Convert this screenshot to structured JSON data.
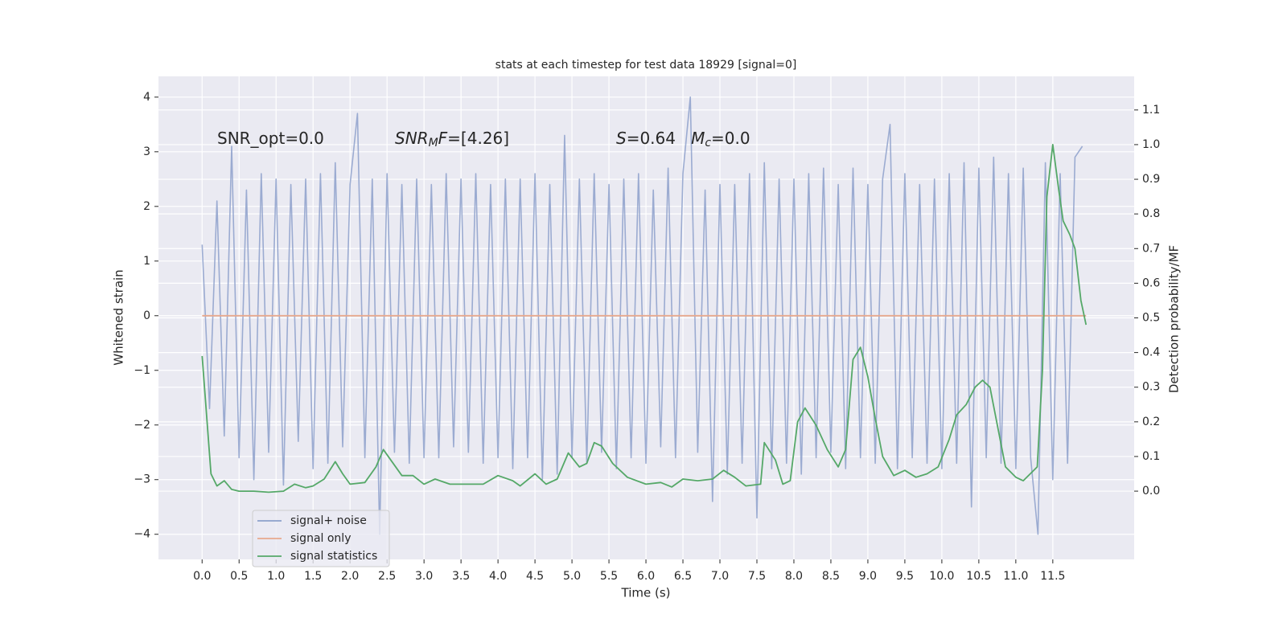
{
  "chart_data": {
    "type": "line",
    "title": "stats at each timestep for test data 18929 [signal=0]",
    "xlabel": "Time (s)",
    "ylabel": "Whitened strain",
    "y2label": "Detection probability/MF",
    "xlim": [
      -0.59,
      12.6
    ],
    "ylim": [
      -4.46,
      4.38
    ],
    "y2lim": [
      -0.197,
      1.197
    ],
    "xticks": [
      {
        "value": 0,
        "label": "0.0"
      },
      0.5,
      {
        "value": 1,
        "label": "1.0"
      },
      1.5,
      {
        "value": 2,
        "label": "2.0"
      },
      2.5,
      {
        "value": 3,
        "label": "3.0"
      },
      3.5,
      {
        "value": 4,
        "label": "4.0"
      },
      4.5,
      {
        "value": 5,
        "label": "5.0"
      },
      5.5,
      {
        "value": 6,
        "label": "6.0"
      },
      6.5,
      {
        "value": 7,
        "label": "7.0"
      },
      7.5,
      {
        "value": 8,
        "label": "8.0"
      },
      8.5,
      {
        "value": 9,
        "label": "9.0"
      },
      9.5,
      {
        "value": 10,
        "label": "10.0"
      },
      10.5,
      {
        "value": 11,
        "label": "11.0"
      },
      11.5
    ],
    "yticks": [
      {
        "value": -4,
        "label": "−4"
      },
      {
        "value": -3,
        "label": "−3"
      },
      {
        "value": -2,
        "label": "−2"
      },
      {
        "value": -1,
        "label": "−1"
      },
      0,
      1,
      2,
      3,
      4
    ],
    "y2ticks": [
      {
        "value": 0,
        "label": "0.0"
      },
      0.1,
      0.2,
      0.3,
      0.4,
      0.5,
      0.6,
      0.7,
      0.8,
      0.9,
      {
        "value": 1,
        "label": "1.0"
      },
      1.1
    ],
    "grid": true,
    "legend": "lower left",
    "annotations": [
      [
        {
          "text": "SNR_opt=0.0"
        }
      ],
      [
        {
          "text": "SNR",
          "italic": true
        },
        {
          "text": "M",
          "italic": true,
          "sub": true
        },
        {
          "text": "F",
          "italic": true
        },
        {
          "text": "=[4.26]"
        }
      ],
      [
        {
          "text": "S",
          "italic": true
        },
        {
          "text": "=0.64   "
        },
        {
          "text": "M",
          "italic": true
        },
        {
          "text": "c",
          "italic": true,
          "sub": true
        },
        {
          "text": "=0.0"
        }
      ]
    ],
    "series": [
      {
        "name": "signal+ noise",
        "color": "#8da0cb",
        "axis": "y",
        "x": [
          0,
          0.1,
          0.2,
          0.3,
          0.4,
          0.5,
          0.6,
          0.7,
          0.8,
          0.9,
          1,
          1.1,
          1.2,
          1.3,
          1.4,
          1.5,
          1.6,
          1.7,
          1.8,
          1.9,
          2,
          2.1,
          2.2,
          2.3,
          2.4,
          2.5,
          2.6,
          2.7,
          2.8,
          2.9,
          3,
          3.1,
          3.2,
          3.3,
          3.4,
          3.5,
          3.6,
          3.7,
          3.8,
          3.9,
          4,
          4.1,
          4.2,
          4.3,
          4.4,
          4.5,
          4.6,
          4.7,
          4.8,
          4.9,
          5,
          5.1,
          5.2,
          5.3,
          5.4,
          5.5,
          5.6,
          5.7,
          5.8,
          5.9,
          6,
          6.1,
          6.2,
          6.3,
          6.4,
          6.5,
          6.6,
          6.7,
          6.8,
          6.9,
          7,
          7.1,
          7.2,
          7.3,
          7.4,
          7.5,
          7.6,
          7.7,
          7.8,
          7.9,
          8,
          8.1,
          8.2,
          8.3,
          8.4,
          8.5,
          8.6,
          8.7,
          8.8,
          8.9,
          9,
          9.1,
          9.2,
          9.3,
          9.4,
          9.5,
          9.6,
          9.7,
          9.8,
          9.9,
          10,
          10.1,
          10.2,
          10.3,
          10.4,
          10.5,
          10.6,
          10.7,
          10.8,
          10.9,
          11,
          11.1,
          11.2,
          11.3,
          11.4,
          11.5,
          11.6,
          11.7,
          11.8,
          11.9
        ],
        "values": [
          1.3,
          -1.7,
          2.1,
          -2.2,
          3.1,
          -2.6,
          2.3,
          -3.0,
          2.6,
          -2.5,
          2.5,
          -3.1,
          2.4,
          -2.3,
          2.5,
          -2.8,
          2.6,
          -2.7,
          2.8,
          -2.4,
          2.4,
          3.7,
          -2.6,
          2.5,
          -4.0,
          2.6,
          -2.5,
          2.4,
          -2.7,
          2.5,
          -2.6,
          2.4,
          -2.6,
          2.6,
          -2.4,
          2.5,
          -2.5,
          2.6,
          -2.7,
          2.4,
          -2.6,
          2.5,
          -2.8,
          2.5,
          -2.6,
          2.6,
          -3.0,
          2.4,
          -2.9,
          3.3,
          -2.6,
          2.5,
          -2.7,
          2.6,
          -2.5,
          2.4,
          -2.8,
          2.5,
          -2.6,
          2.6,
          -2.7,
          2.3,
          -2.4,
          2.7,
          -2.6,
          2.6,
          4.0,
          -2.5,
          2.3,
          -3.4,
          2.4,
          -2.9,
          2.4,
          -2.7,
          2.6,
          -3.7,
          2.8,
          -2.8,
          2.5,
          -2.7,
          2.5,
          -2.9,
          2.6,
          -2.6,
          2.7,
          -2.5,
          2.4,
          -2.8,
          2.7,
          -2.6,
          2.4,
          -2.7,
          2.5,
          3.5,
          -2.8,
          2.6,
          -2.6,
          2.4,
          -2.7,
          2.5,
          -2.8,
          2.6,
          -2.7,
          2.8,
          -3.5,
          2.7,
          -2.6,
          2.9,
          -2.7,
          2.6,
          -2.8,
          2.7,
          -2.6,
          -4.0,
          2.8,
          -3.0,
          2.6,
          -2.7,
          2.9,
          3.1
        ]
      },
      {
        "name": "signal only",
        "color": "#e8a98e",
        "axis": "y",
        "x": [
          0,
          11.95
        ],
        "values": [
          0,
          0
        ]
      },
      {
        "name": "signal statistics",
        "color": "#55a868",
        "axis": "y2",
        "x": [
          0,
          0.12,
          0.2,
          0.3,
          0.4,
          0.5,
          0.7,
          0.9,
          1.1,
          1.25,
          1.4,
          1.5,
          1.65,
          1.8,
          1.9,
          2.0,
          2.2,
          2.35,
          2.45,
          2.55,
          2.7,
          2.85,
          3.0,
          3.15,
          3.35,
          3.6,
          3.8,
          4.0,
          4.2,
          4.3,
          4.5,
          4.65,
          4.8,
          4.95,
          5.1,
          5.2,
          5.3,
          5.4,
          5.55,
          5.75,
          6.0,
          6.2,
          6.35,
          6.5,
          6.7,
          6.9,
          7.05,
          7.2,
          7.35,
          7.55,
          7.6,
          7.75,
          7.85,
          7.95,
          8.05,
          8.15,
          8.3,
          8.45,
          8.6,
          8.7,
          8.8,
          8.9,
          9.0,
          9.1,
          9.2,
          9.35,
          9.5,
          9.65,
          9.8,
          9.95,
          10.1,
          10.2,
          10.33,
          10.45,
          10.55,
          10.65,
          10.86,
          11.0,
          11.1,
          11.29,
          11.36,
          11.42,
          11.5,
          11.58,
          11.64,
          11.73,
          11.8,
          11.88,
          11.95
        ],
        "values": [
          0.39,
          0.05,
          0.015,
          0.03,
          0.005,
          0,
          0,
          -0.003,
          0,
          0.02,
          0.01,
          0.015,
          0.035,
          0.085,
          0.05,
          0.02,
          0.025,
          0.07,
          0.12,
          0.09,
          0.045,
          0.045,
          0.02,
          0.035,
          0.02,
          0.02,
          0.02,
          0.045,
          0.03,
          0.015,
          0.05,
          0.02,
          0.035,
          0.11,
          0.07,
          0.08,
          0.14,
          0.13,
          0.08,
          0.04,
          0.02,
          0.025,
          0.012,
          0.035,
          0.03,
          0.035,
          0.06,
          0.04,
          0.015,
          0.02,
          0.14,
          0.09,
          0.02,
          0.03,
          0.2,
          0.24,
          0.19,
          0.12,
          0.07,
          0.12,
          0.38,
          0.415,
          0.33,
          0.21,
          0.1,
          0.045,
          0.06,
          0.04,
          0.05,
          0.07,
          0.15,
          0.22,
          0.25,
          0.3,
          0.32,
          0.3,
          0.07,
          0.04,
          0.03,
          0.07,
          0.35,
          0.85,
          1.0,
          0.87,
          0.78,
          0.74,
          0.7,
          0.55,
          0.48
        ]
      }
    ]
  }
}
